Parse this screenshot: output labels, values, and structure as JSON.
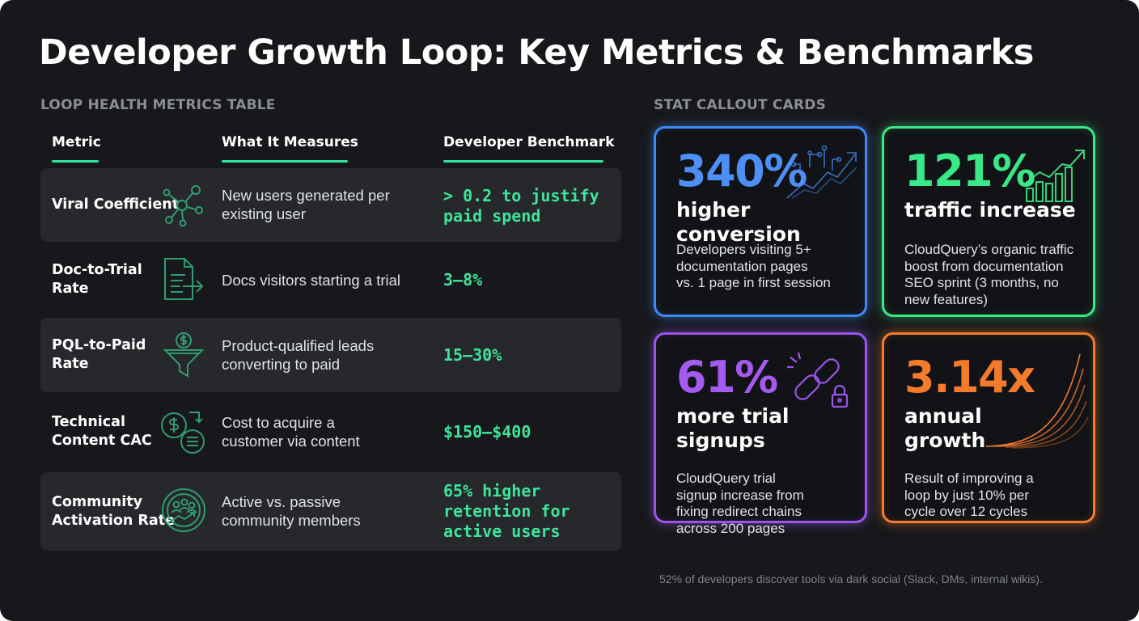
{
  "title": "Developer Growth Loop: Key Metrics & Benchmarks",
  "table_section_label": "LOOP HEALTH METRICS TABLE",
  "cards_section_label": "STAT CALLOUT CARDS",
  "table": {
    "headers": [
      "Metric",
      "What It Measures",
      "Developer Benchmark"
    ],
    "rows": [
      {
        "metric": [
          "Viral Coefficient"
        ],
        "icon": "network-nodes-icon",
        "measures": [
          "New users generated per",
          "existing user"
        ],
        "benchmark": [
          "> 0.2 to justify",
          "paid spend"
        ]
      },
      {
        "metric": [
          "Doc-to-Trial",
          "Rate"
        ],
        "icon": "document-arrow-icon",
        "measures": [
          "Docs visitors starting a trial"
        ],
        "benchmark": [
          "3–8%"
        ]
      },
      {
        "metric": [
          "PQL-to-Paid",
          "Rate"
        ],
        "icon": "dollar-funnel-icon",
        "measures": [
          "Product-qualified leads",
          "converting to paid"
        ],
        "benchmark": [
          "15–30%"
        ]
      },
      {
        "metric": [
          "Technical",
          "Content CAC"
        ],
        "icon": "dollar-cycle-icon",
        "measures": [
          "Cost to acquire a",
          "customer via content"
        ],
        "benchmark": [
          "$150–$400"
        ]
      },
      {
        "metric": [
          "Community",
          "Activation Rate"
        ],
        "icon": "community-growth-icon",
        "measures": [
          "Active vs. passive",
          "community members"
        ],
        "benchmark": [
          "65% higher",
          "retention for",
          "active users"
        ]
      }
    ]
  },
  "cards": [
    {
      "stat": "340%",
      "label": [
        "higher conversion"
      ],
      "desc": [
        "Developers visiting 5+",
        "documentation pages",
        "vs. 1 page in first session"
      ],
      "accent": "#3f88f5",
      "icon": "circuit-trend-icon"
    },
    {
      "stat": "121%",
      "label": [
        "traffic increase"
      ],
      "desc": [
        "CloudQuery’s organic traffic",
        "boost from documentation",
        "SEO sprint (3 months, no",
        "new features)"
      ],
      "accent": "#39e887",
      "icon": "bar-growth-icon"
    },
    {
      "stat": "61%",
      "label": [
        "more trial",
        "signups"
      ],
      "desc": [
        "CloudQuery trial",
        "signup increase from",
        "fixing redirect chains",
        "across 200 pages"
      ],
      "accent": "#9a55ea",
      "icon": "chain-lock-icon"
    },
    {
      "stat": "3.14x",
      "label": [
        "annual",
        "growth"
      ],
      "desc": [
        "Result of improving a",
        "loop by just 10% per",
        "cycle over 12 cycles"
      ],
      "accent": "#f57b2c",
      "icon": "exponential-curves-icon"
    }
  ],
  "footnote": "52% of developers discover tools via dark social (Slack, DMs, internal wikis)."
}
